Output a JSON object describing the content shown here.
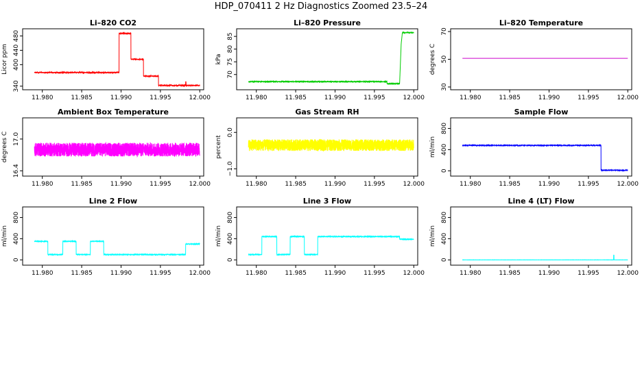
{
  "figure": {
    "title": "HDP_070411  2 Hz Diagnostics Zoomed 23.5–24"
  },
  "chart_data": [
    {
      "type": "line",
      "title": "Li–820 CO2",
      "ylabel": "Licor ppm",
      "color": "#ff0000",
      "xlim": [
        11.9775,
        12.0005
      ],
      "ylim": [
        330,
        500
      ],
      "xticks": [
        11.98,
        11.985,
        11.99,
        11.995,
        12.0
      ],
      "xtick_labels": [
        "11.980",
        "11.985",
        "11.990",
        "11.995",
        "12.000"
      ],
      "yticks": [
        340,
        400,
        440,
        480
      ],
      "ytick_labels": [
        "340",
        "400",
        "440",
        "480"
      ],
      "noise": 1.5,
      "series": [
        {
          "x": [
            11.979,
            11.98975,
            11.98975,
            11.99125,
            11.99125,
            11.99285,
            11.99285,
            11.99475,
            11.99475,
            11.9982,
            11.9982,
            11.99825,
            11.99825,
            12.0
          ],
          "y": [
            378,
            378,
            487,
            487,
            415,
            415,
            368,
            368,
            342,
            342,
            352,
            352,
            342,
            342
          ]
        }
      ]
    },
    {
      "type": "line",
      "title": "Li–820 Pressure",
      "ylabel": "kPa",
      "color": "#00cc00",
      "xlim": [
        11.9775,
        12.0005
      ],
      "ylim": [
        64,
        88
      ],
      "xticks": [
        11.98,
        11.985,
        11.99,
        11.995,
        12.0
      ],
      "xtick_labels": [
        "11.980",
        "11.985",
        "11.990",
        "11.995",
        "12.000"
      ],
      "yticks": [
        70,
        75,
        80,
        85
      ],
      "ytick_labels": [
        "70",
        "75",
        "80",
        "85"
      ],
      "noise": 0.1,
      "series": [
        {
          "x": [
            11.979,
            11.9966,
            11.9966,
            11.9982,
            11.9984,
            11.99855,
            12.0
          ],
          "y": [
            67.2,
            67.2,
            66.4,
            66.4,
            82,
            86.5,
            86.5
          ]
        }
      ]
    },
    {
      "type": "line",
      "title": "Li–820 Temperature",
      "ylabel": "degrees C",
      "color": "#cc00cc",
      "xlim": [
        11.9775,
        12.0005
      ],
      "ylim": [
        28,
        72
      ],
      "xticks": [
        11.98,
        11.985,
        11.99,
        11.995,
        12.0
      ],
      "xtick_labels": [
        "11.980",
        "11.985",
        "11.990",
        "11.995",
        "12.000"
      ],
      "yticks": [
        30,
        50,
        70
      ],
      "ytick_labels": [
        "30",
        "50",
        "70"
      ],
      "noise": 0,
      "series": [
        {
          "x": [
            11.979,
            12.0
          ],
          "y": [
            50.7,
            50.7
          ]
        }
      ]
    },
    {
      "type": "line",
      "title": "Ambient Box Temperature",
      "ylabel": "degrees C",
      "color": "#ff00ff",
      "xlim": [
        11.9775,
        12.0005
      ],
      "ylim": [
        16.3,
        17.4
      ],
      "xticks": [
        11.98,
        11.985,
        11.99,
        11.995,
        12.0
      ],
      "xtick_labels": [
        "11.980",
        "11.985",
        "11.990",
        "11.995",
        "12.000"
      ],
      "yticks": [
        16.4,
        17.0
      ],
      "ytick_labels": [
        "16.4",
        "17.0"
      ],
      "noise": 0.13,
      "series": [
        {
          "x": [
            11.979,
            12.0
          ],
          "y": [
            16.8,
            16.8
          ]
        }
      ]
    },
    {
      "type": "line",
      "title": "Gas Stream RH",
      "ylabel": "percent",
      "color": "#ffff00",
      "xlim": [
        11.9775,
        12.0005
      ],
      "ylim": [
        -1.2,
        0.4
      ],
      "xticks": [
        11.98,
        11.985,
        11.99,
        11.995,
        12.0
      ],
      "xtick_labels": [
        "11.980",
        "11.985",
        "11.990",
        "11.995",
        "12.000"
      ],
      "yticks": [
        -1.0,
        0.0
      ],
      "ytick_labels": [
        "−1.0",
        "0.0"
      ],
      "noise": 0.16,
      "series": [
        {
          "x": [
            11.979,
            12.0
          ],
          "y": [
            -0.35,
            -0.35
          ]
        }
      ]
    },
    {
      "type": "line",
      "title": "Sample Flow",
      "ylabel": "ml/min",
      "color": "#0000ff",
      "xlim": [
        11.9775,
        12.0005
      ],
      "ylim": [
        -100,
        1000
      ],
      "xticks": [
        11.98,
        11.985,
        11.99,
        11.995,
        12.0
      ],
      "xtick_labels": [
        "11.980",
        "11.985",
        "11.990",
        "11.995",
        "12.000"
      ],
      "yticks": [
        0,
        400,
        800
      ],
      "ytick_labels": [
        "0",
        "400",
        "800"
      ],
      "noise": 6,
      "series": [
        {
          "x": [
            11.979,
            11.9966,
            11.9966,
            12.0
          ],
          "y": [
            480,
            480,
            10,
            10
          ]
        }
      ]
    },
    {
      "type": "line",
      "title": "Line 2 Flow",
      "ylabel": "ml/min",
      "color": "#00ffff",
      "xlim": [
        11.9775,
        12.0005
      ],
      "ylim": [
        -100,
        1000
      ],
      "xticks": [
        11.98,
        11.985,
        11.99,
        11.995,
        12.0
      ],
      "xtick_labels": [
        "11.980",
        "11.985",
        "11.990",
        "11.995",
        "12.000"
      ],
      "yticks": [
        0,
        400,
        800
      ],
      "ytick_labels": [
        "0",
        "400",
        "800"
      ],
      "noise": 5,
      "series": [
        {
          "x": [
            11.979,
            11.9807,
            11.9807,
            11.9826,
            11.9826,
            11.9843,
            11.9843,
            11.9861,
            11.9861,
            11.9878,
            11.9878,
            11.9982,
            11.9982,
            12.0
          ],
          "y": [
            350,
            350,
            100,
            100,
            350,
            350,
            100,
            100,
            350,
            350,
            100,
            100,
            300,
            300
          ]
        }
      ]
    },
    {
      "type": "line",
      "title": "Line 3 Flow",
      "ylabel": "ml/min",
      "color": "#00ffff",
      "xlim": [
        11.9775,
        12.0005
      ],
      "ylim": [
        -100,
        1000
      ],
      "xticks": [
        11.98,
        11.985,
        11.99,
        11.995,
        12.0
      ],
      "xtick_labels": [
        "11.980",
        "11.985",
        "11.990",
        "11.995",
        "12.000"
      ],
      "yticks": [
        0,
        400,
        800
      ],
      "ytick_labels": [
        "0",
        "400",
        "800"
      ],
      "noise": 5,
      "series": [
        {
          "x": [
            11.979,
            11.9807,
            11.9807,
            11.9826,
            11.9826,
            11.9843,
            11.9843,
            11.9861,
            11.9861,
            11.9878,
            11.9878,
            11.9982,
            11.9982,
            12.0
          ],
          "y": [
            100,
            100,
            440,
            440,
            100,
            100,
            440,
            440,
            100,
            100,
            440,
            440,
            390,
            390
          ]
        }
      ]
    },
    {
      "type": "line",
      "title": "Line 4 (LT) Flow",
      "ylabel": "ml/min",
      "color": "#00ffff",
      "xlim": [
        11.9775,
        12.0005
      ],
      "ylim": [
        -100,
        1000
      ],
      "xticks": [
        11.98,
        11.985,
        11.99,
        11.995,
        12.0
      ],
      "xtick_labels": [
        "11.980",
        "11.985",
        "11.990",
        "11.995",
        "12.000"
      ],
      "yticks": [
        0,
        400,
        800
      ],
      "ytick_labels": [
        "0",
        "400",
        "800"
      ],
      "noise": 1,
      "series": [
        {
          "x": [
            11.979,
            11.9982,
            11.9982,
            11.99825,
            11.99825,
            12.0
          ],
          "y": [
            0,
            0,
            90,
            90,
            0,
            0
          ]
        }
      ]
    }
  ]
}
